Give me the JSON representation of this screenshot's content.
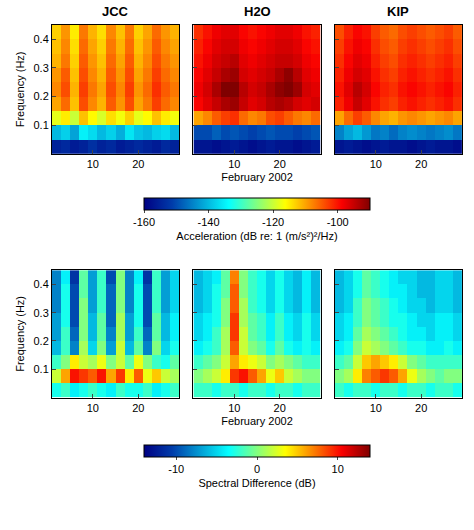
{
  "chart_data": [
    {
      "type": "heatmap",
      "title": "JCC",
      "ylabel": "Frequency (Hz)",
      "x": [
        2,
        4,
        6,
        8,
        10,
        12,
        14,
        16,
        18,
        20,
        22,
        24,
        26,
        28
      ],
      "y": [
        0.025,
        0.075,
        0.125,
        0.175,
        0.225,
        0.275,
        0.325,
        0.375,
        0.425
      ],
      "z": [
        [
          -155,
          -154,
          -156,
          -155,
          -153,
          -155,
          -154,
          -156,
          -155,
          -154,
          -155,
          -156,
          -154,
          -155
        ],
        [
          -140,
          -138,
          -142,
          -135,
          -137,
          -140,
          -138,
          -141,
          -136,
          -139,
          -140,
          -138,
          -137,
          -140
        ],
        [
          -118,
          -115,
          -120,
          -112,
          -116,
          -119,
          -114,
          -117,
          -113,
          -118,
          -116,
          -112,
          -115,
          -117
        ],
        [
          -110,
          -106,
          -112,
          -104,
          -108,
          -111,
          -105,
          -109,
          -104,
          -110,
          -107,
          -103,
          -106,
          -108
        ],
        [
          -108,
          -104,
          -111,
          -103,
          -107,
          -110,
          -104,
          -108,
          -103,
          -109,
          -106,
          -102,
          -105,
          -107
        ],
        [
          -109,
          -105,
          -112,
          -104,
          -108,
          -111,
          -105,
          -109,
          -104,
          -110,
          -107,
          -103,
          -106,
          -108
        ],
        [
          -111,
          -107,
          -113,
          -105,
          -109,
          -112,
          -106,
          -110,
          -105,
          -111,
          -108,
          -104,
          -107,
          -109
        ],
        [
          -112,
          -108,
          -114,
          -106,
          -110,
          -113,
          -107,
          -111,
          -106,
          -112,
          -109,
          -105,
          -108,
          -110
        ],
        [
          -113,
          -109,
          -115,
          -107,
          -111,
          -114,
          -108,
          -112,
          -107,
          -113,
          -110,
          -106,
          -109,
          -111
        ]
      ],
      "xlim": [
        1,
        29
      ],
      "xticks": [
        10,
        20
      ],
      "ylim": [
        0,
        0.45
      ],
      "yticks": [
        0.1,
        0.2,
        0.3,
        0.4
      ],
      "zlim": [
        -160,
        -90
      ]
    },
    {
      "type": "heatmap",
      "title": "H2O",
      "xlabel": "February 2002",
      "tick_labels": "x",
      "x": [
        2,
        4,
        6,
        8,
        10,
        12,
        14,
        16,
        18,
        20,
        22,
        24,
        26,
        28
      ],
      "y": [
        0.025,
        0.075,
        0.125,
        0.175,
        0.225,
        0.275,
        0.325,
        0.375,
        0.425
      ],
      "z": [
        [
          -157,
          -157,
          -158,
          -157,
          -156,
          -157,
          -158,
          -157,
          -156,
          -157,
          -157,
          -158,
          -157,
          -156
        ],
        [
          -150,
          -150,
          -148,
          -150,
          -149,
          -150,
          -151,
          -150,
          -149,
          -150,
          -150,
          -151,
          -150,
          -149
        ],
        [
          -110,
          -108,
          -105,
          -103,
          -102,
          -106,
          -108,
          -107,
          -104,
          -103,
          -105,
          -107,
          -108,
          -106
        ],
        [
          -99,
          -97,
          -95,
          -93,
          -92,
          -95,
          -97,
          -96,
          -94,
          -93,
          -94,
          -96,
          -97,
          -96
        ],
        [
          -98,
          -96,
          -93,
          -90,
          -90,
          -94,
          -96,
          -95,
          -93,
          -91,
          -90,
          -92,
          -96,
          -97
        ],
        [
          -99,
          -97,
          -95,
          -93,
          -92,
          -96,
          -97,
          -96,
          -95,
          -93,
          -91,
          -94,
          -97,
          -98
        ],
        [
          -100,
          -98,
          -96,
          -95,
          -94,
          -97,
          -98,
          -97,
          -96,
          -95,
          -95,
          -96,
          -98,
          -99
        ],
        [
          -101,
          -99,
          -97,
          -96,
          -96,
          -98,
          -99,
          -98,
          -97,
          -96,
          -96,
          -97,
          -99,
          -100
        ],
        [
          -102,
          -100,
          -98,
          -97,
          -97,
          -99,
          -100,
          -99,
          -98,
          -97,
          -97,
          -98,
          -100,
          -101
        ]
      ],
      "xlim": [
        1,
        29
      ],
      "xticks": [
        10,
        20
      ],
      "ylim": [
        0,
        0.45
      ],
      "yticks": [
        0.1,
        0.2,
        0.3,
        0.4
      ],
      "zlim": [
        -160,
        -90
      ],
      "colorbar": {
        "title": "Acceleration (dB re: 1 (m/s²)²/Hz)",
        "ticks": [
          -160,
          -140,
          -120,
          -100
        ]
      }
    },
    {
      "type": "heatmap",
      "title": "KIP",
      "tick_labels": "x",
      "x": [
        2,
        4,
        6,
        8,
        10,
        12,
        14,
        16,
        18,
        20,
        22,
        24,
        26,
        28
      ],
      "y": [
        0.025,
        0.075,
        0.125,
        0.175,
        0.225,
        0.275,
        0.325,
        0.375,
        0.425
      ],
      "z": [
        [
          -157,
          -156,
          -157,
          -158,
          -157,
          -156,
          -157,
          -157,
          -158,
          -157,
          -156,
          -157,
          -157,
          -158
        ],
        [
          -145,
          -142,
          -140,
          -143,
          -146,
          -145,
          -147,
          -145,
          -144,
          -145,
          -146,
          -145,
          -144,
          -146
        ],
        [
          -110,
          -106,
          -103,
          -105,
          -108,
          -110,
          -111,
          -109,
          -108,
          -109,
          -110,
          -109,
          -108,
          -110
        ],
        [
          -101,
          -98,
          -95,
          -97,
          -100,
          -102,
          -103,
          -101,
          -100,
          -101,
          -102,
          -101,
          -100,
          -102
        ],
        [
          -100,
          -97,
          -94,
          -96,
          -99,
          -101,
          -102,
          -100,
          -99,
          -100,
          -101,
          -100,
          -99,
          -101
        ],
        [
          -101,
          -98,
          -96,
          -97,
          -100,
          -102,
          -103,
          -101,
          -100,
          -101,
          -102,
          -101,
          -100,
          -102
        ],
        [
          -102,
          -99,
          -97,
          -98,
          -101,
          -103,
          -104,
          -102,
          -101,
          -102,
          -103,
          -102,
          -101,
          -103
        ],
        [
          -103,
          -100,
          -98,
          -99,
          -102,
          -104,
          -105,
          -103,
          -102,
          -103,
          -104,
          -103,
          -102,
          -104
        ],
        [
          -104,
          -101,
          -99,
          -100,
          -103,
          -105,
          -106,
          -104,
          -103,
          -104,
          -105,
          -104,
          -103,
          -105
        ]
      ],
      "xlim": [
        1,
        29
      ],
      "xticks": [
        10,
        20
      ],
      "ylim": [
        0,
        0.45
      ],
      "yticks": [
        0.1,
        0.2,
        0.3,
        0.4
      ],
      "zlim": [
        -160,
        -90
      ]
    },
    {
      "type": "heatmap",
      "ylabel": "Frequency (Hz)",
      "x": [
        2,
        4,
        6,
        8,
        10,
        12,
        14,
        16,
        18,
        20,
        22,
        24,
        26,
        28
      ],
      "y": [
        0.025,
        0.075,
        0.125,
        0.175,
        0.225,
        0.275,
        0.325,
        0.375,
        0.425
      ],
      "z": [
        [
          -3,
          -2,
          -4,
          -3,
          -2,
          -3,
          -4,
          -2,
          -3,
          -3,
          -2,
          -4,
          -3,
          -2
        ],
        [
          2,
          6,
          10,
          9,
          8,
          10,
          6,
          9,
          4,
          8,
          3,
          5,
          2,
          1
        ],
        [
          -2,
          0,
          4,
          2,
          1,
          3,
          0,
          2,
          -1,
          3,
          0,
          -2,
          -3,
          -1
        ],
        [
          -6,
          -2,
          -8,
          1,
          -5,
          0,
          -7,
          2,
          -6,
          -1,
          -8,
          0,
          -5,
          -3
        ],
        [
          -7,
          -2,
          -9,
          0,
          -6,
          -1,
          -8,
          1,
          -7,
          -2,
          -9,
          -1,
          -6,
          -4
        ],
        [
          -7,
          -3,
          -10,
          0,
          -6,
          -1,
          -9,
          1,
          -7,
          -3,
          -10,
          -1,
          -6,
          -4
        ],
        [
          -8,
          -3,
          -10,
          0,
          -7,
          -2,
          -9,
          0,
          -8,
          -3,
          -10,
          -2,
          -7,
          -5
        ],
        [
          -8,
          -3,
          -10,
          -1,
          -7,
          -2,
          -9,
          0,
          -8,
          -3,
          -10,
          -2,
          -7,
          -5
        ],
        [
          -8,
          -4,
          -11,
          -1,
          -7,
          -2,
          -10,
          0,
          -8,
          -4,
          -11,
          -2,
          -7,
          -5
        ]
      ],
      "xlim": [
        1,
        29
      ],
      "xticks": [
        10,
        20
      ],
      "ylim": [
        0,
        0.45
      ],
      "yticks": [
        0.1,
        0.2,
        0.3,
        0.4
      ],
      "zlim": [
        -14,
        14
      ]
    },
    {
      "type": "heatmap",
      "xlabel": "February 2002",
      "tick_labels": "x",
      "x": [
        2,
        4,
        6,
        8,
        10,
        12,
        14,
        16,
        18,
        20,
        22,
        24,
        26,
        28
      ],
      "y": [
        0.025,
        0.075,
        0.125,
        0.175,
        0.225,
        0.275,
        0.325,
        0.375,
        0.425
      ],
      "z": [
        [
          -2,
          -2,
          -3,
          -2,
          -2,
          -3,
          -2,
          -2,
          -3,
          -2,
          -2,
          -3,
          -2,
          -2
        ],
        [
          0,
          1,
          2,
          4,
          9,
          10,
          8,
          6,
          3,
          5,
          2,
          1,
          0,
          0
        ],
        [
          -2,
          -1,
          0,
          2,
          6,
          4,
          3,
          2,
          0,
          1,
          0,
          -1,
          -2,
          -2
        ],
        [
          -4,
          -3,
          -2,
          1,
          8,
          2,
          0,
          -1,
          -3,
          -1,
          -3,
          -4,
          -3,
          -4
        ],
        [
          -5,
          -4,
          -2,
          1,
          9,
          2,
          -1,
          -2,
          -4,
          -2,
          -4,
          -5,
          -3,
          -5
        ],
        [
          -5,
          -4,
          -3,
          0,
          9,
          1,
          -1,
          -2,
          -4,
          -2,
          -4,
          -5,
          -3,
          -5
        ],
        [
          -6,
          -5,
          -3,
          0,
          8,
          1,
          -2,
          -3,
          -5,
          -3,
          -5,
          -6,
          -4,
          -6
        ],
        [
          -6,
          -5,
          -3,
          -1,
          8,
          0,
          -2,
          -3,
          -5,
          -3,
          -5,
          -6,
          -4,
          -6
        ],
        [
          -6,
          -5,
          -4,
          -1,
          7,
          0,
          -2,
          -3,
          -5,
          -3,
          -5,
          -6,
          -4,
          -6
        ]
      ],
      "xlim": [
        1,
        29
      ],
      "xticks": [
        10,
        20
      ],
      "ylim": [
        0,
        0.45
      ],
      "yticks": [
        0.1,
        0.2,
        0.3,
        0.4
      ],
      "zlim": [
        -14,
        14
      ],
      "colorbar": {
        "title": "Spectral Difference (dB)",
        "ticks": [
          -10,
          0,
          10
        ]
      }
    },
    {
      "type": "heatmap",
      "tick_labels": "x",
      "x": [
        2,
        4,
        6,
        8,
        10,
        12,
        14,
        16,
        18,
        20,
        22,
        24,
        26,
        28
      ],
      "y": [
        0.025,
        0.075,
        0.125,
        0.175,
        0.225,
        0.275,
        0.325,
        0.375,
        0.425
      ],
      "z": [
        [
          -2,
          -3,
          -2,
          -2,
          -3,
          -2,
          -2,
          -3,
          -2,
          -2,
          -3,
          -2,
          -2,
          -3
        ],
        [
          0,
          1,
          4,
          7,
          8,
          9,
          8,
          6,
          3,
          1,
          0,
          -1,
          0,
          0
        ],
        [
          -2,
          -1,
          2,
          5,
          6,
          5,
          4,
          2,
          0,
          -1,
          -2,
          -2,
          -2,
          -2
        ],
        [
          -4,
          -3,
          0,
          2,
          1,
          0,
          -1,
          -2,
          -3,
          -3,
          -4,
          -4,
          -3,
          -4
        ],
        [
          -5,
          -4,
          -1,
          1,
          0,
          -1,
          -2,
          -3,
          -4,
          -4,
          -5,
          -4,
          -4,
          -5
        ],
        [
          -5,
          -4,
          -2,
          0,
          -1,
          -2,
          -3,
          -3,
          -4,
          -5,
          -5,
          -4,
          -4,
          -5
        ],
        [
          -6,
          -5,
          -2,
          0,
          -1,
          -2,
          -3,
          -4,
          -5,
          -5,
          -6,
          -5,
          -5,
          -6
        ],
        [
          -6,
          -5,
          -3,
          -1,
          -2,
          -3,
          -4,
          -4,
          -5,
          -6,
          -6,
          -5,
          -5,
          -6
        ],
        [
          -6,
          -5,
          -3,
          -1,
          -2,
          -3,
          -4,
          -5,
          -5,
          -6,
          -6,
          -5,
          -5,
          -6
        ]
      ],
      "xlim": [
        1,
        29
      ],
      "xticks": [
        10,
        20
      ],
      "ylim": [
        0,
        0.45
      ],
      "yticks": [
        0.1,
        0.2,
        0.3,
        0.4
      ],
      "zlim": [
        -14,
        14
      ]
    }
  ]
}
